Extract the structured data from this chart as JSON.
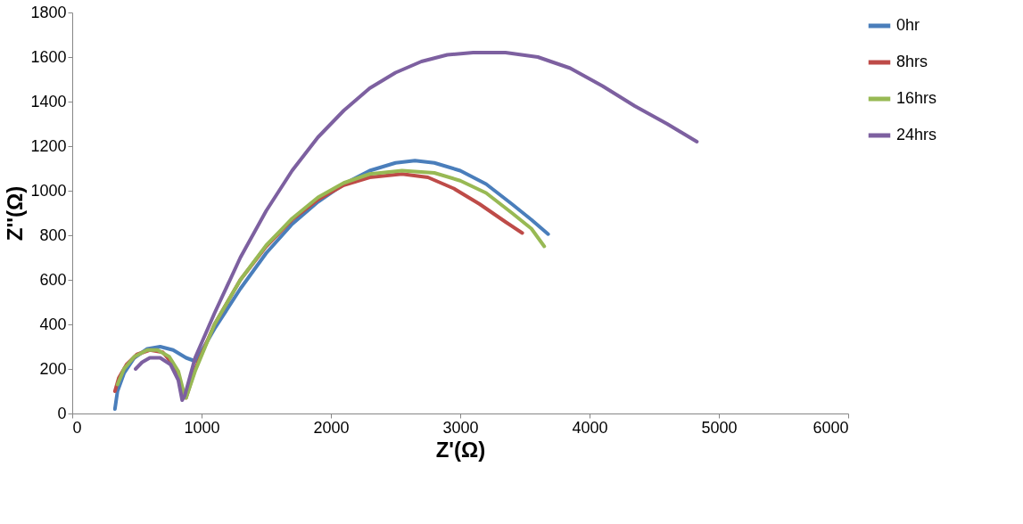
{
  "chart_data": {
    "type": "line",
    "xlabel": "Z'(Ω)",
    "ylabel": "Z''(Ω)",
    "xlim": [
      0,
      6000
    ],
    "xticks": [
      0,
      1000,
      2000,
      3000,
      4000,
      5000,
      6000
    ],
    "ylim": [
      0,
      1800
    ],
    "yticks": [
      0,
      200,
      400,
      600,
      800,
      1000,
      1200,
      1400,
      1600,
      1800
    ],
    "grid": false,
    "legend": "right",
    "marker": "none",
    "line_style": "solid",
    "series": [
      {
        "name": "0hr",
        "color": "#4a7ebb",
        "x": [
          330,
          350,
          400,
          480,
          580,
          680,
          780,
          880,
          950,
          1000,
          1100,
          1300,
          1500,
          1700,
          1900,
          2100,
          2300,
          2500,
          2650,
          2800,
          3000,
          3200,
          3400,
          3550,
          3680
        ],
        "values": [
          20,
          100,
          180,
          250,
          290,
          300,
          285,
          250,
          235,
          280,
          380,
          560,
          720,
          850,
          950,
          1030,
          1090,
          1125,
          1135,
          1125,
          1090,
          1030,
          940,
          870,
          805
        ]
      },
      {
        "name": "8hrs",
        "color": "#be4b48",
        "x": [
          330,
          360,
          420,
          500,
          600,
          700,
          780,
          830,
          860,
          880,
          950,
          1100,
          1300,
          1500,
          1700,
          1900,
          2100,
          2300,
          2550,
          2750,
          2950,
          3150,
          3350,
          3480
        ],
        "values": [
          100,
          160,
          220,
          265,
          285,
          275,
          220,
          150,
          80,
          70,
          200,
          400,
          600,
          750,
          870,
          960,
          1025,
          1060,
          1075,
          1060,
          1010,
          940,
          860,
          810
        ]
      },
      {
        "name": "16hrs",
        "color": "#98b954",
        "x": [
          350,
          400,
          480,
          580,
          660,
          750,
          820,
          860,
          880,
          950,
          1100,
          1300,
          1500,
          1700,
          1900,
          2100,
          2300,
          2550,
          2800,
          3000,
          3200,
          3400,
          3550,
          3650
        ],
        "values": [
          130,
          200,
          255,
          285,
          285,
          255,
          190,
          100,
          70,
          190,
          400,
          600,
          755,
          875,
          970,
          1035,
          1075,
          1090,
          1080,
          1045,
          990,
          900,
          830,
          750
        ]
      },
      {
        "name": "24hrs",
        "color": "#7d60a0",
        "x": [
          490,
          540,
          600,
          680,
          760,
          820,
          850,
          870,
          950,
          1100,
          1300,
          1500,
          1700,
          1900,
          2100,
          2300,
          2500,
          2700,
          2900,
          3100,
          3350,
          3600,
          3850,
          4100,
          4350,
          4600,
          4830
        ],
        "values": [
          200,
          230,
          250,
          250,
          220,
          150,
          60,
          80,
          250,
          450,
          700,
          910,
          1090,
          1240,
          1360,
          1460,
          1530,
          1580,
          1610,
          1620,
          1620,
          1600,
          1550,
          1470,
          1380,
          1300,
          1220
        ]
      }
    ]
  }
}
